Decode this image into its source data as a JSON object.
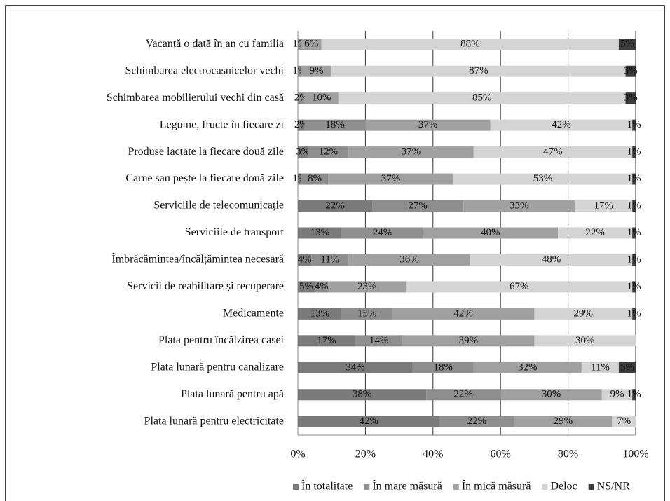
{
  "chart_data": {
    "type": "stacked-bar-horizontal",
    "categories": [
      "Vacanță o dată în an cu familia",
      "Schimbarea electrocasnicelor vechi",
      "Schimbarea mobilierului vechi din casă",
      "Legume, fructe în fiecare zi",
      "Produse lactate la fiecare două zile",
      "Carne sau pește la fiecare două zile",
      "Serviciile  de telecomunicație",
      "Serviciile de transport",
      "Îmbrăcămintea/încălțămintea necesară",
      "Servicii  de reabilitare și recuperare",
      "Medicamente",
      "Plata pentru încălzirea casei",
      "Plata lunară  pentru canalizare",
      "Plata lunară  pentru apă",
      "Plata lunară pentru electricitate"
    ],
    "series": [
      {
        "name": "În totalitate",
        "color": "#7a7a7a",
        "values": [
          null,
          null,
          null,
          2,
          3,
          1,
          22,
          13,
          4,
          5,
          13,
          17,
          34,
          38,
          42
        ],
        "value_labels": [
          null,
          null,
          null,
          "2%",
          "3%",
          "1%",
          "22%",
          "13%",
          "4%",
          "5%",
          "13%",
          "17%",
          "34%",
          "38%",
          "42%"
        ]
      },
      {
        "name": "În mare măsură",
        "color": "#8e8e8e",
        "values": [
          1,
          1,
          2,
          18,
          12,
          8,
          27,
          24,
          11,
          4,
          15,
          14,
          18,
          22,
          22
        ],
        "value_labels": [
          "1%",
          "1%",
          "2%",
          "18%",
          "12%",
          "8%",
          "27%",
          "24%",
          "11%",
          "4%",
          "15%",
          "14%",
          "18%",
          "22%",
          "22%"
        ]
      },
      {
        "name": "În mică măsură",
        "color": "#a0a0a0",
        "values": [
          6,
          9,
          10,
          37,
          37,
          37,
          33,
          40,
          36,
          23,
          42,
          39,
          32,
          30,
          29
        ],
        "value_labels": [
          "6%",
          "9%",
          "10%",
          "37%",
          "37%",
          "37%",
          "33%",
          "40%",
          "36%",
          "23%",
          "42%",
          "39%",
          "32%",
          "30%",
          "29%"
        ]
      },
      {
        "name": "Deloc",
        "color": "#d4d4d4",
        "values": [
          88,
          87,
          85,
          42,
          47,
          53,
          17,
          22,
          48,
          67,
          29,
          30,
          11,
          9,
          7
        ],
        "value_labels": [
          "88%",
          "87%",
          "85%",
          "42%",
          "47%",
          "53%",
          "17%",
          "22%",
          "48%",
          "67%",
          "29%",
          "30%",
          "11%",
          "9%",
          "7%"
        ]
      },
      {
        "name": "NS/NR",
        "color": "#3c3c3c",
        "values": [
          5,
          3,
          3,
          1,
          1,
          1,
          1,
          1,
          1,
          1,
          1,
          null,
          5,
          1,
          null
        ],
        "value_labels": [
          "5%",
          "3%",
          "3%",
          "1%",
          "1%",
          "1%",
          "1%",
          "1%",
          "1%",
          "1%",
          "1%",
          null,
          "5%",
          "1%",
          null
        ]
      }
    ],
    "xlim": [
      0,
      100
    ],
    "xticks": [
      {
        "value": 0,
        "label": "0%"
      },
      {
        "value": 20,
        "label": "20%"
      },
      {
        "value": 40,
        "label": "40%"
      },
      {
        "value": 60,
        "label": "60%"
      },
      {
        "value": 80,
        "label": "80%"
      },
      {
        "value": 100,
        "label": "100%"
      }
    ],
    "grid": true,
    "legend": "bottom"
  }
}
